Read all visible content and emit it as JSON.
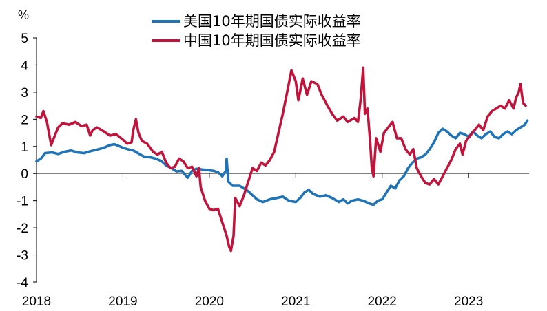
{
  "chart_data": {
    "type": "line",
    "title": "",
    "ylabel": "%",
    "xlabel": "",
    "ylim": [
      -4,
      5
    ],
    "yticks": [
      "5",
      "4",
      "3",
      "2",
      "1",
      "0",
      "-1",
      "-2",
      "-3",
      "-4"
    ],
    "xlim": [
      2018.0,
      2023.7
    ],
    "x_ticks": [
      "2018",
      "2019",
      "2020",
      "2021",
      "2022",
      "2023"
    ],
    "legend_position": "top-center",
    "series": [
      {
        "name": "美国10年期国债实际收益率",
        "color": "#1f73b7",
        "points": [
          [
            2018.0,
            0.45
          ],
          [
            2018.05,
            0.55
          ],
          [
            2018.1,
            0.75
          ],
          [
            2018.18,
            0.78
          ],
          [
            2018.25,
            0.72
          ],
          [
            2018.32,
            0.8
          ],
          [
            2018.4,
            0.85
          ],
          [
            2018.47,
            0.78
          ],
          [
            2018.55,
            0.75
          ],
          [
            2018.62,
            0.82
          ],
          [
            2018.7,
            0.88
          ],
          [
            2018.78,
            0.95
          ],
          [
            2018.85,
            1.05
          ],
          [
            2018.9,
            1.08
          ],
          [
            2018.95,
            1.02
          ],
          [
            2019.0,
            0.95
          ],
          [
            2019.05,
            0.9
          ],
          [
            2019.12,
            0.85
          ],
          [
            2019.2,
            0.7
          ],
          [
            2019.25,
            0.62
          ],
          [
            2019.32,
            0.6
          ],
          [
            2019.38,
            0.55
          ],
          [
            2019.45,
            0.45
          ],
          [
            2019.5,
            0.3
          ],
          [
            2019.56,
            0.2
          ],
          [
            2019.62,
            0.08
          ],
          [
            2019.68,
            0.1
          ],
          [
            2019.72,
            -0.05
          ],
          [
            2019.75,
            -0.15
          ],
          [
            2019.8,
            0.1
          ],
          [
            2019.85,
            0.18
          ],
          [
            2019.92,
            0.15
          ],
          [
            2020.0,
            0.12
          ],
          [
            2020.05,
            0.1
          ],
          [
            2020.1,
            0.05
          ],
          [
            2020.15,
            -0.1
          ],
          [
            2020.19,
            0.1
          ],
          [
            2020.2,
            0.55
          ],
          [
            2020.22,
            -0.3
          ],
          [
            2020.27,
            -0.45
          ],
          [
            2020.35,
            -0.45
          ],
          [
            2020.4,
            -0.55
          ],
          [
            2020.45,
            -0.65
          ],
          [
            2020.5,
            -0.8
          ],
          [
            2020.55,
            -0.95
          ],
          [
            2020.62,
            -1.05
          ],
          [
            2020.7,
            -0.95
          ],
          [
            2020.78,
            -0.9
          ],
          [
            2020.85,
            -0.85
          ],
          [
            2020.92,
            -1.0
          ],
          [
            2021.0,
            -1.05
          ],
          [
            2021.05,
            -0.9
          ],
          [
            2021.1,
            -0.7
          ],
          [
            2021.15,
            -0.6
          ],
          [
            2021.2,
            -0.75
          ],
          [
            2021.28,
            -0.85
          ],
          [
            2021.35,
            -0.8
          ],
          [
            2021.42,
            -0.9
          ],
          [
            2021.5,
            -1.05
          ],
          [
            2021.55,
            -0.95
          ],
          [
            2021.6,
            -1.1
          ],
          [
            2021.65,
            -1.0
          ],
          [
            2021.72,
            -0.95
          ],
          [
            2021.78,
            -1.0
          ],
          [
            2021.85,
            -1.1
          ],
          [
            2021.9,
            -1.15
          ],
          [
            2021.95,
            -1.0
          ],
          [
            2022.0,
            -0.95
          ],
          [
            2022.05,
            -0.7
          ],
          [
            2022.1,
            -0.45
          ],
          [
            2022.15,
            -0.55
          ],
          [
            2022.2,
            -0.25
          ],
          [
            2022.25,
            -0.1
          ],
          [
            2022.3,
            0.2
          ],
          [
            2022.35,
            0.4
          ],
          [
            2022.4,
            0.55
          ],
          [
            2022.45,
            0.6
          ],
          [
            2022.5,
            0.7
          ],
          [
            2022.55,
            0.9
          ],
          [
            2022.6,
            1.15
          ],
          [
            2022.65,
            1.5
          ],
          [
            2022.7,
            1.65
          ],
          [
            2022.75,
            1.55
          ],
          [
            2022.8,
            1.4
          ],
          [
            2022.85,
            1.3
          ],
          [
            2022.9,
            1.5
          ],
          [
            2022.95,
            1.45
          ],
          [
            2023.0,
            1.35
          ],
          [
            2023.05,
            1.55
          ],
          [
            2023.1,
            1.4
          ],
          [
            2023.15,
            1.3
          ],
          [
            2023.2,
            1.45
          ],
          [
            2023.25,
            1.55
          ],
          [
            2023.3,
            1.35
          ],
          [
            2023.35,
            1.3
          ],
          [
            2023.4,
            1.45
          ],
          [
            2023.45,
            1.55
          ],
          [
            2023.5,
            1.45
          ],
          [
            2023.55,
            1.6
          ],
          [
            2023.6,
            1.7
          ],
          [
            2023.65,
            1.8
          ],
          [
            2023.68,
            1.95
          ]
        ]
      },
      {
        "name": "中国10年期国债实际收益率",
        "color": "#c0143c",
        "points": [
          [
            2018.0,
            2.1
          ],
          [
            2018.05,
            2.05
          ],
          [
            2018.08,
            2.3
          ],
          [
            2018.12,
            1.9
          ],
          [
            2018.17,
            1.05
          ],
          [
            2018.2,
            1.3
          ],
          [
            2018.25,
            1.7
          ],
          [
            2018.3,
            1.85
          ],
          [
            2018.38,
            1.8
          ],
          [
            2018.45,
            1.9
          ],
          [
            2018.52,
            1.75
          ],
          [
            2018.58,
            1.8
          ],
          [
            2018.62,
            1.4
          ],
          [
            2018.65,
            1.6
          ],
          [
            2018.7,
            1.7
          ],
          [
            2018.78,
            1.55
          ],
          [
            2018.85,
            1.4
          ],
          [
            2018.92,
            1.45
          ],
          [
            2019.0,
            1.25
          ],
          [
            2019.05,
            1.1
          ],
          [
            2019.1,
            1.15
          ],
          [
            2019.12,
            1.6
          ],
          [
            2019.15,
            2.0
          ],
          [
            2019.18,
            1.5
          ],
          [
            2019.22,
            1.2
          ],
          [
            2019.28,
            1.1
          ],
          [
            2019.35,
            0.8
          ],
          [
            2019.4,
            0.7
          ],
          [
            2019.45,
            0.8
          ],
          [
            2019.5,
            0.4
          ],
          [
            2019.55,
            0.2
          ],
          [
            2019.6,
            0.25
          ],
          [
            2019.65,
            0.55
          ],
          [
            2019.7,
            0.45
          ],
          [
            2019.75,
            0.2
          ],
          [
            2019.8,
            0.25
          ],
          [
            2019.85,
            -0.1
          ],
          [
            2019.88,
            0.2
          ],
          [
            2019.9,
            -0.5
          ],
          [
            2019.95,
            -1.0
          ],
          [
            2020.0,
            -1.3
          ],
          [
            2020.05,
            -1.35
          ],
          [
            2020.1,
            -1.3
          ],
          [
            2020.15,
            -1.8
          ],
          [
            2020.2,
            -2.3
          ],
          [
            2020.23,
            -2.7
          ],
          [
            2020.25,
            -2.85
          ],
          [
            2020.28,
            -2.3
          ],
          [
            2020.3,
            -0.9
          ],
          [
            2020.35,
            -1.2
          ],
          [
            2020.4,
            -0.8
          ],
          [
            2020.45,
            -0.3
          ],
          [
            2020.5,
            0.2
          ],
          [
            2020.55,
            0.1
          ],
          [
            2020.6,
            0.4
          ],
          [
            2020.65,
            0.3
          ],
          [
            2020.7,
            0.5
          ],
          [
            2020.75,
            0.8
          ],
          [
            2020.8,
            1.5
          ],
          [
            2020.85,
            2.2
          ],
          [
            2020.9,
            3.0
          ],
          [
            2020.95,
            3.8
          ],
          [
            2021.0,
            3.4
          ],
          [
            2021.03,
            2.7
          ],
          [
            2021.08,
            3.5
          ],
          [
            2021.13,
            2.9
          ],
          [
            2021.18,
            3.4
          ],
          [
            2021.25,
            3.3
          ],
          [
            2021.3,
            2.9
          ],
          [
            2021.35,
            2.6
          ],
          [
            2021.42,
            2.2
          ],
          [
            2021.48,
            1.95
          ],
          [
            2021.55,
            2.1
          ],
          [
            2021.6,
            1.9
          ],
          [
            2021.68,
            2.05
          ],
          [
            2021.72,
            1.9
          ],
          [
            2021.75,
            2.7
          ],
          [
            2021.78,
            3.9
          ],
          [
            2021.8,
            2.2
          ],
          [
            2021.83,
            2.4
          ],
          [
            2021.86,
            1.2
          ],
          [
            2021.88,
            0.2
          ],
          [
            2021.9,
            -0.1
          ],
          [
            2021.93,
            1.3
          ],
          [
            2021.98,
            0.8
          ],
          [
            2022.02,
            1.5
          ],
          [
            2022.07,
            1.7
          ],
          [
            2022.12,
            1.9
          ],
          [
            2022.17,
            1.3
          ],
          [
            2022.22,
            1.3
          ],
          [
            2022.27,
            0.9
          ],
          [
            2022.32,
            0.7
          ],
          [
            2022.36,
            0.9
          ],
          [
            2022.4,
            0.2
          ],
          [
            2022.45,
            -0.1
          ],
          [
            2022.5,
            -0.35
          ],
          [
            2022.55,
            -0.4
          ],
          [
            2022.6,
            -0.2
          ],
          [
            2022.65,
            -0.4
          ],
          [
            2022.7,
            -0.1
          ],
          [
            2022.75,
            0.2
          ],
          [
            2022.8,
            0.5
          ],
          [
            2022.85,
            0.9
          ],
          [
            2022.9,
            1.1
          ],
          [
            2022.93,
            0.7
          ],
          [
            2022.97,
            1.2
          ],
          [
            2023.02,
            1.4
          ],
          [
            2023.07,
            1.6
          ],
          [
            2023.12,
            1.8
          ],
          [
            2023.17,
            1.6
          ],
          [
            2023.22,
            2.1
          ],
          [
            2023.27,
            2.3
          ],
          [
            2023.32,
            2.4
          ],
          [
            2023.37,
            2.5
          ],
          [
            2023.42,
            2.4
          ],
          [
            2023.47,
            2.7
          ],
          [
            2023.52,
            2.4
          ],
          [
            2023.55,
            2.8
          ],
          [
            2023.58,
            3.0
          ],
          [
            2023.6,
            3.3
          ],
          [
            2023.63,
            2.6
          ],
          [
            2023.66,
            2.5
          ]
        ]
      }
    ]
  }
}
